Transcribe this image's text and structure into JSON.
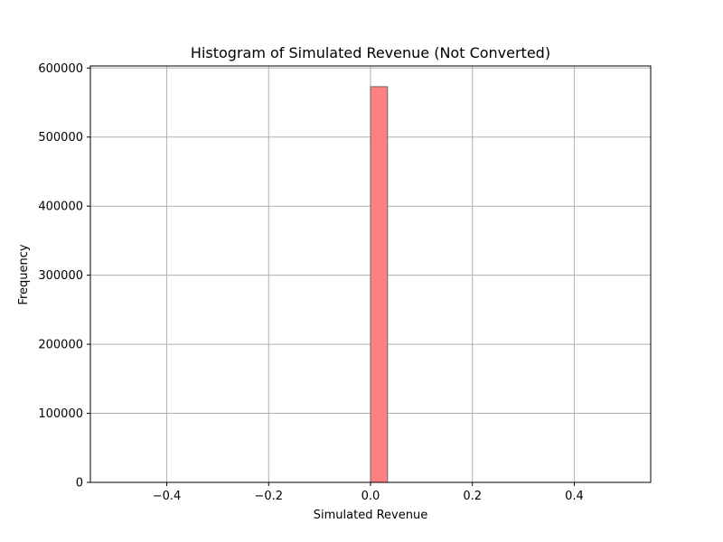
{
  "chart_data": {
    "type": "bar",
    "title": "Histogram of Simulated Revenue (Not Converted)",
    "xlabel": "Simulated Revenue",
    "ylabel": "Frequency",
    "xlim": [
      -0.55,
      0.55
    ],
    "ylim": [
      0,
      603000
    ],
    "xticks": [
      -0.4,
      -0.2,
      0.0,
      0.2,
      0.4
    ],
    "xtick_labels": [
      "−0.4",
      "−0.2",
      "0.0",
      "0.2",
      "0.4"
    ],
    "yticks": [
      0,
      100000,
      200000,
      300000,
      400000,
      500000,
      600000
    ],
    "ytick_labels": [
      "0",
      "100000",
      "200000",
      "300000",
      "400000",
      "500000",
      "600000"
    ],
    "grid": true,
    "bins": [
      {
        "start": 0.0,
        "end": 0.0333,
        "count": 573000
      }
    ],
    "colors": {
      "bar_fill": "#ff8080",
      "bar_edge": "#666666",
      "grid": "#b0b0b0",
      "axes": "#000000"
    }
  }
}
